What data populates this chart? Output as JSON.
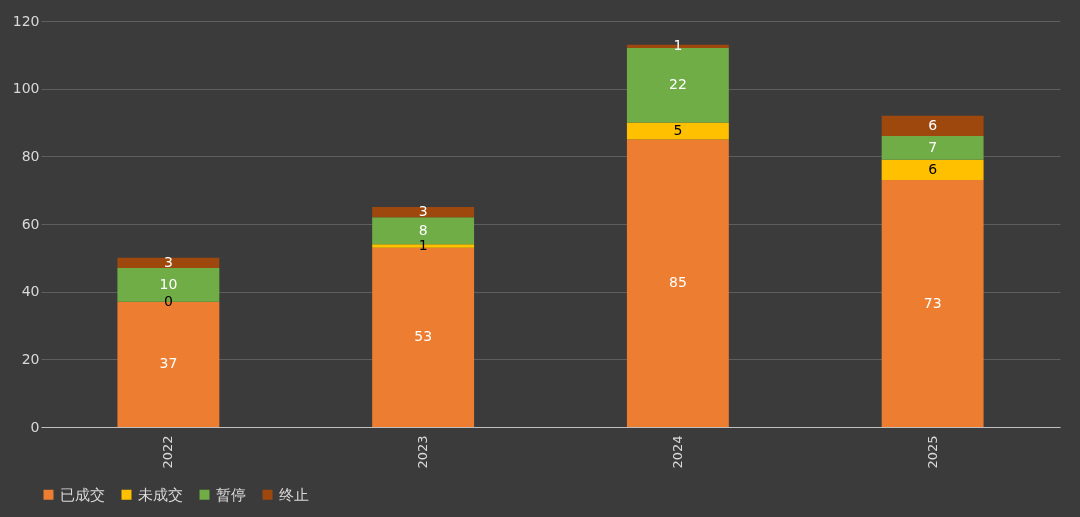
{
  "chart_data": {
    "type": "bar",
    "stacked": true,
    "categories": [
      "2022",
      "2023",
      "2024",
      "2025"
    ],
    "series": [
      {
        "name": "已成交",
        "color": "#ed7d31",
        "values": [
          37,
          53,
          85,
          73
        ]
      },
      {
        "name": "未成交",
        "color": "#ffc000",
        "values": [
          0,
          1,
          5,
          6
        ]
      },
      {
        "name": "暂停",
        "color": "#70ad47",
        "values": [
          10,
          8,
          22,
          7
        ]
      },
      {
        "name": "终止",
        "color": "#9e480e",
        "values": [
          3,
          3,
          1,
          6
        ]
      }
    ],
    "ylim": [
      0,
      120
    ],
    "yticks": [
      0,
      20,
      40,
      60,
      80,
      100,
      120
    ],
    "grid": "y",
    "legend": "bottom",
    "data_labels": true
  }
}
